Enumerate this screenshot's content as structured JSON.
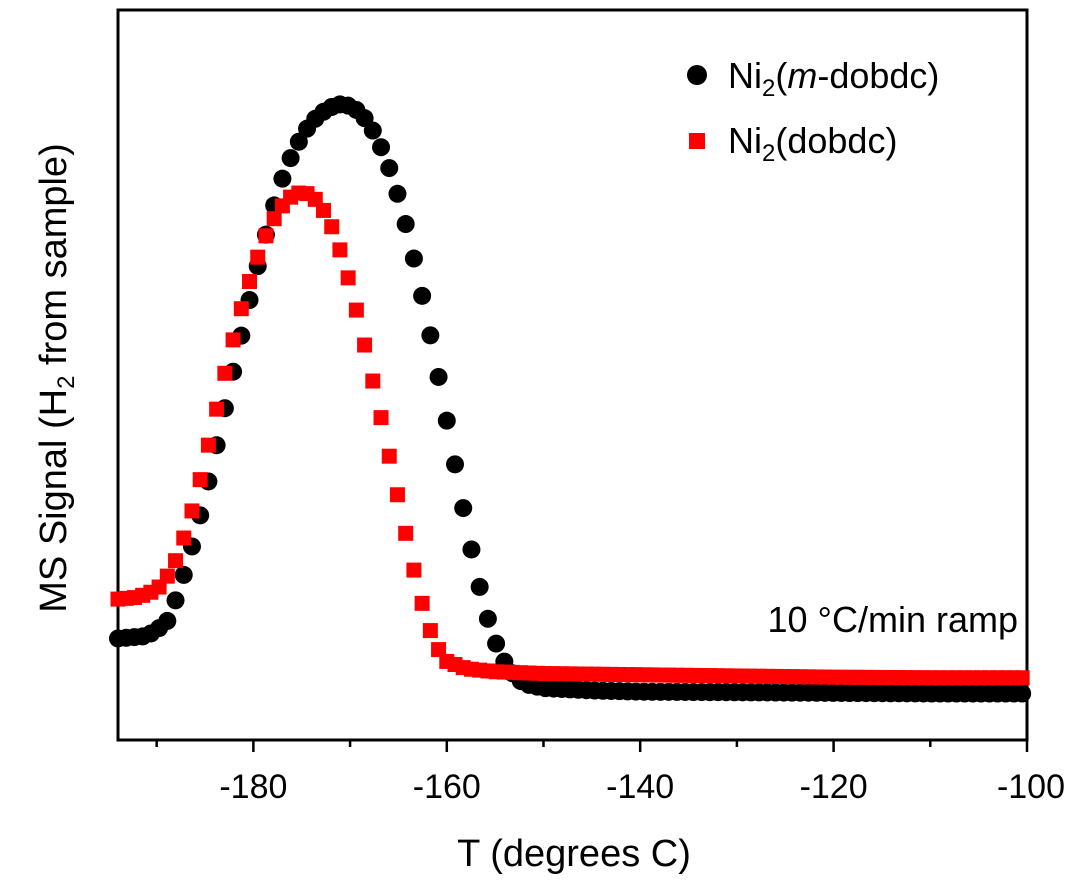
{
  "chart_data": {
    "type": "scatter",
    "xlabel": "T (degrees C)",
    "ylabel": {
      "before": "MS Signal (H",
      "sub": "2",
      "after": " from sample)"
    },
    "xlim": [
      -194,
      -100
    ],
    "ylim": [
      0,
      1
    ],
    "x_ticks": [
      -180,
      -160,
      -140,
      -120,
      -100
    ],
    "y_ticks_shown": false,
    "annotation": "10 °C/min ramp",
    "legend_position": "top-right",
    "series": [
      {
        "name_parts": {
          "base": "Ni",
          "sub": "2",
          "open": "(",
          "italic": "m",
          "rest": "-dobdc)"
        },
        "marker": "circle",
        "color": "#000000",
        "points": [
          [
            -194,
            0.11
          ],
          [
            -191,
            0.114
          ],
          [
            -189,
            0.135
          ],
          [
            -188,
            0.175
          ],
          [
            -187,
            0.225
          ],
          [
            -186,
            0.282
          ],
          [
            -185,
            0.345
          ],
          [
            -184,
            0.415
          ],
          [
            -183,
            0.487
          ],
          [
            -182,
            0.558
          ],
          [
            -181,
            0.628
          ],
          [
            -180,
            0.697
          ],
          [
            -179,
            0.76
          ],
          [
            -178,
            0.818
          ],
          [
            -177,
            0.87
          ],
          [
            -176,
            0.91
          ],
          [
            -175,
            0.94
          ],
          [
            -174,
            0.963
          ],
          [
            -173,
            0.978
          ],
          [
            -172,
            0.988
          ],
          [
            -171,
            0.993
          ],
          [
            -170,
            0.99
          ],
          [
            -169,
            0.98
          ],
          [
            -168,
            0.96
          ],
          [
            -167,
            0.93
          ],
          [
            -166,
            0.89
          ],
          [
            -165,
            0.84
          ],
          [
            -164,
            0.78
          ],
          [
            -163,
            0.71
          ],
          [
            -162,
            0.635
          ],
          [
            -161,
            0.555
          ],
          [
            -160,
            0.47
          ],
          [
            -159,
            0.385
          ],
          [
            -158,
            0.3
          ],
          [
            -157,
            0.222
          ],
          [
            -156,
            0.155
          ],
          [
            -155,
            0.105
          ],
          [
            -154,
            0.07
          ],
          [
            -153,
            0.048
          ],
          [
            -152,
            0.035
          ],
          [
            -150,
            0.028
          ],
          [
            -145,
            0.024
          ],
          [
            -140,
            0.022
          ],
          [
            -130,
            0.021
          ],
          [
            -120,
            0.02
          ],
          [
            -110,
            0.019
          ],
          [
            -100,
            0.019
          ]
        ]
      },
      {
        "name_parts": {
          "base": "Ni",
          "sub": "2",
          "open": "(",
          "italic": "",
          "rest": "dobdc)"
        },
        "marker": "square",
        "color": "#ff0000",
        "points": [
          [
            -194,
            0.175
          ],
          [
            -192,
            0.178
          ],
          [
            -190,
            0.19
          ],
          [
            -189,
            0.21
          ],
          [
            -188,
            0.24
          ],
          [
            -187,
            0.285
          ],
          [
            -186,
            0.34
          ],
          [
            -185,
            0.405
          ],
          [
            -184,
            0.475
          ],
          [
            -183,
            0.545
          ],
          [
            -182,
            0.61
          ],
          [
            -181,
            0.67
          ],
          [
            -180,
            0.72
          ],
          [
            -179,
            0.765
          ],
          [
            -178,
            0.8
          ],
          [
            -177,
            0.825
          ],
          [
            -176,
            0.842
          ],
          [
            -175,
            0.848
          ],
          [
            -174,
            0.843
          ],
          [
            -173,
            0.825
          ],
          [
            -172,
            0.795
          ],
          [
            -171,
            0.75
          ],
          [
            -170,
            0.695
          ],
          [
            -169,
            0.63
          ],
          [
            -168,
            0.56
          ],
          [
            -167,
            0.49
          ],
          [
            -166,
            0.415
          ],
          [
            -165,
            0.34
          ],
          [
            -164,
            0.265
          ],
          [
            -163,
            0.195
          ],
          [
            -162,
            0.135
          ],
          [
            -161,
            0.095
          ],
          [
            -160,
            0.072
          ],
          [
            -158,
            0.06
          ],
          [
            -155,
            0.055
          ],
          [
            -150,
            0.052
          ],
          [
            -140,
            0.05
          ],
          [
            -130,
            0.048
          ],
          [
            -120,
            0.046
          ],
          [
            -110,
            0.045
          ],
          [
            -100,
            0.045
          ]
        ]
      }
    ]
  }
}
